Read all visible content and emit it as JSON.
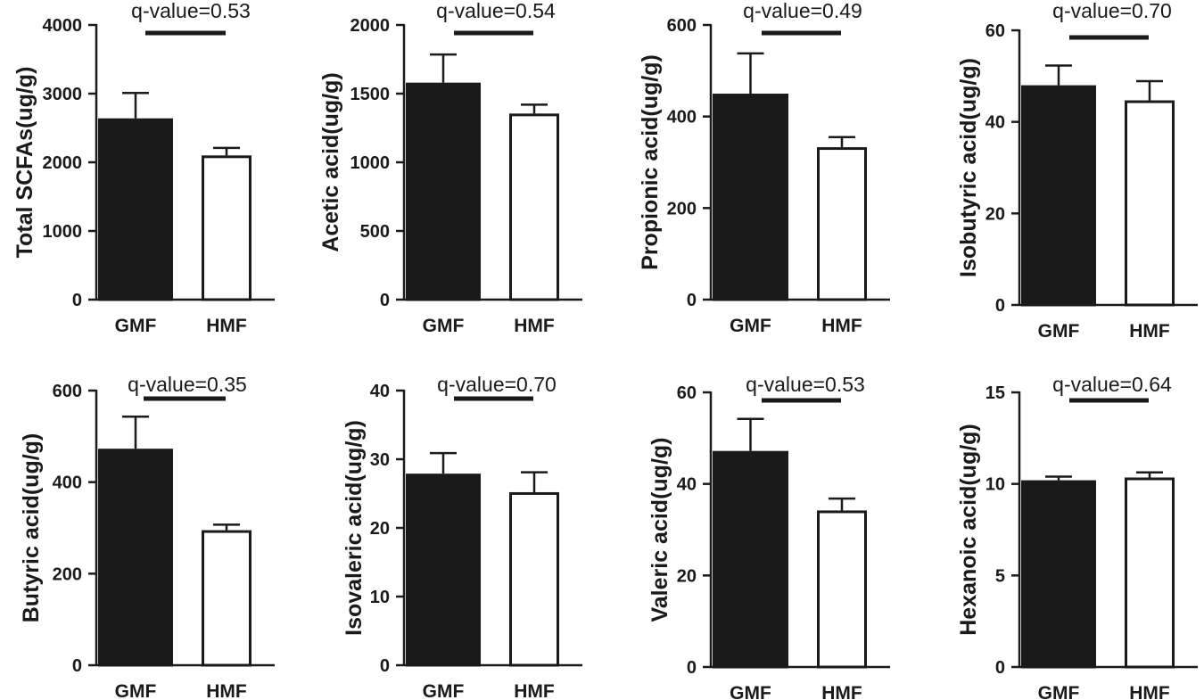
{
  "chart_data": [
    {
      "type": "bar",
      "categories": [
        "GMF",
        "HMF"
      ],
      "values": [
        2640,
        2100
      ],
      "errors": [
        370,
        110
      ],
      "fills": [
        "#1a1a1a",
        "#ffffff"
      ],
      "ylabel": "Total SCFAs(ug/g)",
      "ylim": [
        0,
        4000
      ],
      "yticks": [
        0,
        1000,
        2000,
        3000,
        4000
      ],
      "annotation": "q-value=0.53"
    },
    {
      "type": "bar",
      "categories": [
        "GMF",
        "HMF"
      ],
      "values": [
        1580,
        1355
      ],
      "errors": [
        205,
        65
      ],
      "fills": [
        "#1a1a1a",
        "#ffffff"
      ],
      "ylabel": "Acetic acid(ug/g)",
      "ylim": [
        0,
        2000
      ],
      "yticks": [
        0,
        500,
        1000,
        1500,
        2000
      ],
      "annotation": "q-value=0.54"
    },
    {
      "type": "bar",
      "categories": [
        "GMF",
        "HMF"
      ],
      "values": [
        450,
        333
      ],
      "errors": [
        88,
        22
      ],
      "fills": [
        "#1a1a1a",
        "#ffffff"
      ],
      "ylabel": "Propionic acid(ug/g)",
      "ylim": [
        0,
        600
      ],
      "yticks": [
        0,
        200,
        400,
        600
      ],
      "annotation": "q-value=0.49"
    },
    {
      "type": "bar",
      "categories": [
        "GMF",
        "HMF"
      ],
      "values": [
        48,
        44.7
      ],
      "errors": [
        4.3,
        4.2
      ],
      "fills": [
        "#1a1a1a",
        "#ffffff"
      ],
      "ylabel": "Isobutyric acid(ug/g)",
      "ylim": [
        0,
        60
      ],
      "yticks": [
        0,
        20,
        40,
        60
      ],
      "annotation": "q-value=0.70"
    },
    {
      "type": "bar",
      "categories": [
        "GMF",
        "HMF"
      ],
      "values": [
        473,
        295
      ],
      "errors": [
        70,
        12
      ],
      "fills": [
        "#1a1a1a",
        "#ffffff"
      ],
      "ylabel": "Butyric acid(ug/g)",
      "ylim": [
        0,
        600
      ],
      "yticks": [
        0,
        200,
        400,
        600
      ],
      "annotation": "q-value=0.35"
    },
    {
      "type": "bar",
      "categories": [
        "GMF",
        "HMF"
      ],
      "values": [
        27.9,
        25.2
      ],
      "errors": [
        3.0,
        2.9
      ],
      "fills": [
        "#1a1a1a",
        "#ffffff"
      ],
      "ylabel": "Isovaleric acid(ug/g)",
      "ylim": [
        0,
        40
      ],
      "yticks": [
        0,
        10,
        20,
        30,
        40
      ],
      "annotation": "q-value=0.70"
    },
    {
      "type": "bar",
      "categories": [
        "GMF",
        "HMF"
      ],
      "values": [
        47.2,
        34.2
      ],
      "errors": [
        7.0,
        2.6
      ],
      "fills": [
        "#1a1a1a",
        "#ffffff"
      ],
      "ylabel": "Valeric acid(ug/g)",
      "ylim": [
        0,
        60
      ],
      "yticks": [
        0,
        20,
        40,
        60
      ],
      "annotation": "q-value=0.53"
    },
    {
      "type": "bar",
      "categories": [
        "GMF",
        "HMF"
      ],
      "values": [
        10.2,
        10.35
      ],
      "errors": [
        0.2,
        0.28
      ],
      "fills": [
        "#1a1a1a",
        "#ffffff"
      ],
      "ylabel": "Hexanoic acid(ug/g)",
      "ylim": [
        0,
        15
      ],
      "yticks": [
        0,
        5,
        10,
        15
      ],
      "annotation": "q-value=0.64"
    }
  ]
}
